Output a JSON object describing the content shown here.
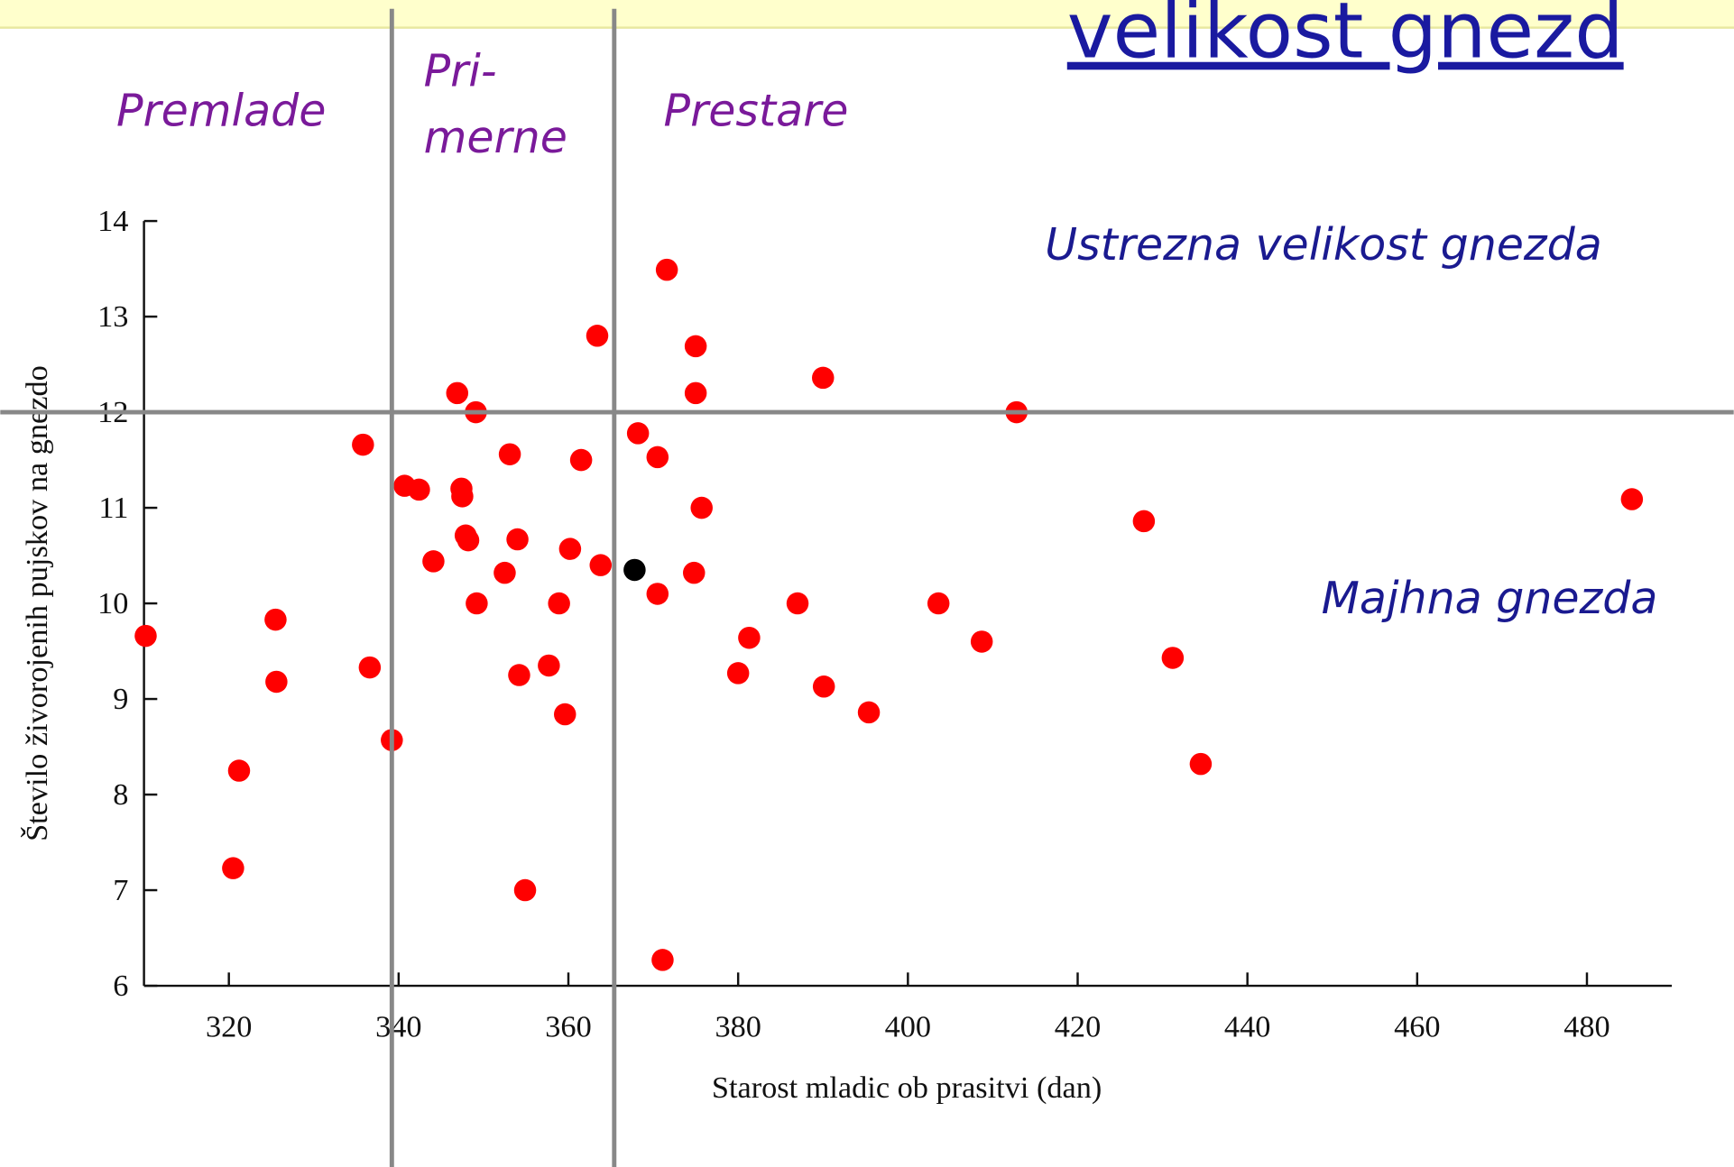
{
  "chart_data": {
    "type": "scatter",
    "title": "velikost gnezd",
    "xlabel": "Starost mladic ob prasitvi (dan)",
    "ylabel": "Število živorojenih pujskov na gnezdo",
    "annotations": [
      "Premlade",
      "Pri-",
      "merne",
      "Prestare",
      "Ustrezna velikost gnezda",
      "Majhna gnezda"
    ],
    "xlim": [
      310,
      490
    ],
    "ylim": [
      6,
      14
    ],
    "xticks": [
      320,
      340,
      360,
      380,
      400,
      420,
      440,
      460,
      480
    ],
    "yticks": [
      6,
      7,
      8,
      9,
      10,
      11,
      12,
      13,
      14
    ],
    "vlines": [
      339.2,
      365.4
    ],
    "hlines": [
      12
    ],
    "line_color": "#888888",
    "series": [
      {
        "color": "#ff0000",
        "x": [
          310.2,
          325.5,
          325.6,
          321.2,
          320.5,
          335.8,
          336.6,
          339.2,
          340.7,
          342.4,
          344.1,
          346.9,
          347.4,
          347.5,
          347.9,
          348.2,
          349.1,
          349.2,
          353.1,
          352.5,
          354.0,
          354.2,
          354.9,
          357.7,
          358.9,
          359.6,
          360.2,
          361.5,
          363.4,
          363.8,
          368.2,
          370.5,
          370.5,
          371.6,
          371.1,
          375.0,
          375.0,
          375.7,
          374.8,
          380.0,
          381.3,
          387.0,
          390.0,
          390.1,
          395.4,
          403.6,
          408.7,
          412.8,
          427.8,
          431.2,
          434.5,
          485.3
        ],
        "values": [
          9.66,
          9.83,
          9.18,
          8.25,
          7.23,
          11.66,
          9.33,
          8.57,
          11.23,
          11.19,
          10.44,
          12.2,
          11.2,
          11.12,
          10.71,
          10.66,
          12.0,
          10.0,
          11.56,
          10.32,
          10.67,
          9.25,
          7.0,
          9.35,
          10.0,
          8.84,
          10.57,
          11.5,
          12.8,
          10.4,
          11.78,
          11.53,
          10.1,
          13.49,
          6.27,
          12.69,
          12.2,
          11.0,
          10.32,
          9.27,
          9.64,
          10.0,
          12.36,
          9.13,
          8.86,
          10.0,
          9.6,
          12.0,
          10.86,
          9.43,
          8.32,
          11.09
        ]
      },
      {
        "color": "#000000",
        "x": [
          367.8
        ],
        "values": [
          10.35
        ]
      }
    ]
  }
}
